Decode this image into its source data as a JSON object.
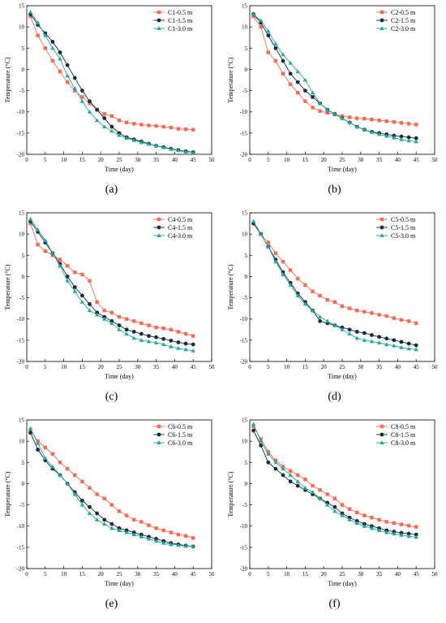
{
  "chart_data": [
    {
      "type": "line",
      "caption": "(a)",
      "xlabel": "Time (day)",
      "ylabel": "Temperature (°C)",
      "xlim": [
        0,
        50
      ],
      "ylim": [
        -20,
        15
      ],
      "xticks": [
        0,
        5,
        10,
        15,
        20,
        25,
        30,
        35,
        40,
        45,
        50
      ],
      "yticks": [
        -20,
        -15,
        -10,
        -5,
        0,
        5,
        10,
        15
      ],
      "legend_position": "top-right",
      "x": [
        1,
        3,
        5,
        7,
        9,
        11,
        13,
        15,
        17,
        19,
        21,
        23,
        25,
        27,
        29,
        31,
        33,
        35,
        37,
        39,
        41,
        43,
        45
      ],
      "series": [
        {
          "name": "C1-0.5 m",
          "color": "#f26b55",
          "marker": "square",
          "values": [
            12.5,
            8,
            5,
            2,
            -0.5,
            -3,
            -5,
            -6.5,
            -8,
            -9.5,
            -10.5,
            -11,
            -12,
            -12.5,
            -12.8,
            -13,
            -13.2,
            -13.3,
            -13.5,
            -13.7,
            -14,
            -14.1,
            -14.2
          ]
        },
        {
          "name": "C1-1.5 m",
          "color": "#1a2a44",
          "marker": "circle",
          "values": [
            13,
            10.5,
            8.5,
            6.5,
            4,
            1,
            -2,
            -5,
            -7.5,
            -9.5,
            -11.5,
            -13.5,
            -15,
            -16,
            -16.5,
            -17,
            -17.5,
            -18,
            -18.3,
            -18.7,
            -19,
            -19.3,
            -19.5
          ]
        },
        {
          "name": "C1-3.0 m",
          "color": "#22a99a",
          "marker": "triangle",
          "values": [
            13.5,
            11,
            8,
            5,
            2.5,
            -1.5,
            -4.5,
            -7.5,
            -10,
            -12,
            -13.5,
            -14.5,
            -15.5,
            -16.2,
            -16.7,
            -17.2,
            -17.6,
            -18,
            -18.4,
            -18.8,
            -19.1,
            -19.4,
            -19.6
          ]
        }
      ]
    },
    {
      "type": "line",
      "caption": "(b)",
      "xlabel": "Time (day)",
      "ylabel": "Temperature (°C)",
      "xlim": [
        0,
        50
      ],
      "ylim": [
        -20,
        15
      ],
      "xticks": [
        0,
        5,
        10,
        15,
        20,
        25,
        30,
        35,
        40,
        45,
        50
      ],
      "yticks": [
        -20,
        -15,
        -10,
        -5,
        0,
        5,
        10,
        15
      ],
      "legend_position": "top-right",
      "x": [
        1,
        3,
        5,
        7,
        9,
        11,
        13,
        15,
        17,
        19,
        21,
        23,
        25,
        27,
        29,
        31,
        33,
        35,
        37,
        39,
        41,
        43,
        45
      ],
      "series": [
        {
          "name": "C2-0.5 m",
          "color": "#f26b55",
          "marker": "square",
          "values": [
            12.5,
            10,
            4,
            2,
            -1,
            -3.5,
            -5.5,
            -7.5,
            -9,
            -9.8,
            -10.2,
            -10.6,
            -11,
            -11.3,
            -11.5,
            -11.6,
            -11.8,
            -12,
            -12.2,
            -12.4,
            -12.6,
            -12.8,
            -13
          ]
        },
        {
          "name": "C2-1.5 m",
          "color": "#1a2a44",
          "marker": "circle",
          "values": [
            13,
            11,
            8,
            5,
            2,
            -1,
            -3,
            -5,
            -6.5,
            -8,
            -9.5,
            -10.5,
            -11.5,
            -12.5,
            -13.5,
            -14.2,
            -14.7,
            -15,
            -15.3,
            -15.6,
            -15.8,
            -16,
            -16.2
          ]
        },
        {
          "name": "C2-3.0 m",
          "color": "#22a99a",
          "marker": "triangle",
          "values": [
            13,
            11.5,
            9,
            6,
            3.5,
            1.5,
            -0.5,
            -2.5,
            -5.5,
            -8,
            -9.5,
            -10.5,
            -11.5,
            -12.5,
            -13.5,
            -14.2,
            -14.8,
            -15.3,
            -15.7,
            -16.1,
            -16.5,
            -16.8,
            -17
          ]
        }
      ]
    },
    {
      "type": "line",
      "caption": "(c)",
      "xlabel": "Time (day)",
      "ylabel": "Temperature (°C)",
      "xlim": [
        0,
        50
      ],
      "ylim": [
        -20,
        15
      ],
      "xticks": [
        0,
        5,
        10,
        15,
        20,
        25,
        30,
        35,
        40,
        45,
        50
      ],
      "yticks": [
        -20,
        -15,
        -10,
        -5,
        0,
        5,
        10,
        15
      ],
      "legend_position": "top-right",
      "x": [
        1,
        3,
        5,
        7,
        9,
        11,
        13,
        15,
        17,
        19,
        21,
        23,
        25,
        27,
        29,
        31,
        33,
        35,
        37,
        39,
        41,
        43,
        45
      ],
      "series": [
        {
          "name": "C4-0.5 m",
          "color": "#f26b55",
          "marker": "square",
          "values": [
            12.5,
            7.5,
            6,
            5,
            4,
            2.5,
            1,
            0.5,
            -1,
            -6,
            -8,
            -8.5,
            -9.5,
            -10,
            -10.5,
            -11,
            -11.5,
            -12,
            -12.2,
            -12.5,
            -13,
            -13.5,
            -14
          ]
        },
        {
          "name": "C4-1.5 m",
          "color": "#1a2a44",
          "marker": "circle",
          "values": [
            13,
            10.5,
            8,
            5.5,
            3,
            0,
            -2.5,
            -4.5,
            -6.5,
            -8.5,
            -9.5,
            -10.5,
            -11.5,
            -12.5,
            -13,
            -13.5,
            -14,
            -14.3,
            -14.7,
            -15.1,
            -15.5,
            -15.8,
            -16
          ]
        },
        {
          "name": "C4-3.0 m",
          "color": "#22a99a",
          "marker": "triangle",
          "values": [
            13.5,
            11,
            8.5,
            5.5,
            2.5,
            -1,
            -3.5,
            -6,
            -8,
            -9,
            -10,
            -11,
            -12.5,
            -13.5,
            -14.5,
            -15,
            -15.3,
            -15.6,
            -16,
            -16.5,
            -16.9,
            -17.2,
            -17.5
          ]
        }
      ]
    },
    {
      "type": "line",
      "caption": "(d)",
      "xlabel": "Time (day)",
      "ylabel": "Temperature (°C)",
      "xlim": [
        0,
        50
      ],
      "ylim": [
        -20,
        15
      ],
      "xticks": [
        0,
        5,
        10,
        15,
        20,
        25,
        30,
        35,
        40,
        45,
        50
      ],
      "yticks": [
        -20,
        -15,
        -10,
        -5,
        0,
        5,
        10,
        15
      ],
      "legend_position": "top-right",
      "x": [
        1,
        3,
        5,
        7,
        9,
        11,
        13,
        15,
        17,
        19,
        21,
        23,
        25,
        27,
        29,
        31,
        33,
        35,
        37,
        39,
        41,
        43,
        45
      ],
      "series": [
        {
          "name": "C5-0.5 m",
          "color": "#f26b55",
          "marker": "square",
          "values": [
            12.5,
            10,
            8,
            5.5,
            3.5,
            1.5,
            -0.5,
            -2,
            -3.5,
            -4.5,
            -5.5,
            -6,
            -7,
            -7.5,
            -8,
            -8.3,
            -8.6,
            -9,
            -9.3,
            -9.8,
            -10.2,
            -10.5,
            -11
          ]
        },
        {
          "name": "C5-1.5 m",
          "color": "#1a2a44",
          "marker": "circle",
          "values": [
            12.5,
            10,
            7,
            4,
            1,
            -1.5,
            -4,
            -6,
            -8,
            -10.5,
            -11,
            -11.5,
            -12,
            -12.5,
            -13,
            -13.3,
            -13.8,
            -14.2,
            -14.6,
            -15,
            -15.4,
            -15.8,
            -16.2
          ]
        },
        {
          "name": "C5-3.0 m",
          "color": "#22a99a",
          "marker": "triangle",
          "values": [
            13,
            10,
            7,
            3.5,
            0.5,
            -2,
            -4.5,
            -6.5,
            -8,
            -9.5,
            -10.5,
            -11.5,
            -12.5,
            -13.5,
            -14.5,
            -15,
            -15.3,
            -15.6,
            -16,
            -16.3,
            -16.7,
            -17,
            -17.2
          ]
        }
      ]
    },
    {
      "type": "line",
      "caption": "(e)",
      "xlabel": "Time (day)",
      "ylabel": "Temperature (°C)",
      "xlim": [
        0,
        50
      ],
      "ylim": [
        -20,
        15
      ],
      "xticks": [
        0,
        5,
        10,
        15,
        20,
        25,
        30,
        35,
        40,
        45,
        50
      ],
      "yticks": [
        -20,
        -15,
        -10,
        -5,
        0,
        5,
        10,
        15
      ],
      "legend_position": "top-right",
      "x": [
        1,
        3,
        5,
        7,
        9,
        11,
        13,
        15,
        17,
        19,
        21,
        23,
        25,
        27,
        29,
        31,
        33,
        35,
        37,
        39,
        41,
        43,
        45
      ],
      "series": [
        {
          "name": "C6-0.5 m",
          "color": "#f26b55",
          "marker": "square",
          "values": [
            12.5,
            10,
            8.5,
            7,
            5,
            3.5,
            2,
            0.5,
            -1,
            -2.5,
            -3.5,
            -5,
            -6.5,
            -7.5,
            -8.5,
            -9,
            -9.8,
            -10.5,
            -11,
            -11.5,
            -12,
            -12.3,
            -12.8
          ]
        },
        {
          "name": "C6-1.5 m",
          "color": "#1a2a44",
          "marker": "circle",
          "values": [
            12,
            8,
            5.5,
            3.5,
            2,
            0,
            -2,
            -4,
            -5.5,
            -7,
            -8.5,
            -9.5,
            -10.5,
            -11,
            -11.5,
            -12,
            -12.5,
            -13,
            -13.5,
            -14,
            -14.3,
            -14.6,
            -14.8
          ]
        },
        {
          "name": "C6-3.0 m",
          "color": "#22a99a",
          "marker": "triangle",
          "values": [
            13,
            9.5,
            6,
            4,
            2,
            0,
            -2.5,
            -5,
            -7,
            -8.5,
            -9.5,
            -10.5,
            -11,
            -11.5,
            -12,
            -12.5,
            -13,
            -13.5,
            -14,
            -14.3,
            -14.5,
            -14.7,
            -14.8
          ]
        }
      ]
    },
    {
      "type": "line",
      "caption": "(f)",
      "xlabel": "Time (day)",
      "ylabel": "Temperature (°C)",
      "xlim": [
        0,
        50
      ],
      "ylim": [
        -20,
        15
      ],
      "xticks": [
        0,
        5,
        10,
        15,
        20,
        25,
        30,
        35,
        40,
        45,
        50
      ],
      "yticks": [
        -20,
        -15,
        -10,
        -5,
        0,
        5,
        10,
        15
      ],
      "legend_position": "top-right",
      "x": [
        1,
        3,
        5,
        7,
        9,
        11,
        13,
        15,
        17,
        19,
        21,
        23,
        25,
        27,
        29,
        31,
        33,
        35,
        37,
        39,
        41,
        43,
        45
      ],
      "series": [
        {
          "name": "C8-0.5 m",
          "color": "#f26b55",
          "marker": "square",
          "values": [
            13.5,
            10.5,
            7.5,
            5.5,
            4,
            3,
            2,
            1,
            -0.5,
            -1.5,
            -2.5,
            -3.5,
            -5,
            -6,
            -6.8,
            -7.5,
            -8,
            -8.5,
            -9,
            -9.3,
            -9.6,
            -9.9,
            -10.2
          ]
        },
        {
          "name": "C8-1.5 m",
          "color": "#1a2a44",
          "marker": "circle",
          "values": [
            12.5,
            9,
            5,
            3.5,
            2,
            0.5,
            -0.5,
            -1.5,
            -2.5,
            -3.5,
            -4.5,
            -5.5,
            -7,
            -8,
            -8.8,
            -9.5,
            -10,
            -10.5,
            -11,
            -11.3,
            -11.6,
            -11.8,
            -12
          ]
        },
        {
          "name": "C8-3.0 m",
          "color": "#22a99a",
          "marker": "triangle",
          "values": [
            14,
            10,
            7,
            5,
            3.5,
            2,
            0.5,
            -1,
            -2,
            -3.5,
            -5,
            -6.5,
            -7.5,
            -8.5,
            -9.3,
            -10,
            -10.5,
            -11,
            -11.5,
            -11.8,
            -12.1,
            -12.4,
            -12.6
          ]
        }
      ]
    }
  ]
}
